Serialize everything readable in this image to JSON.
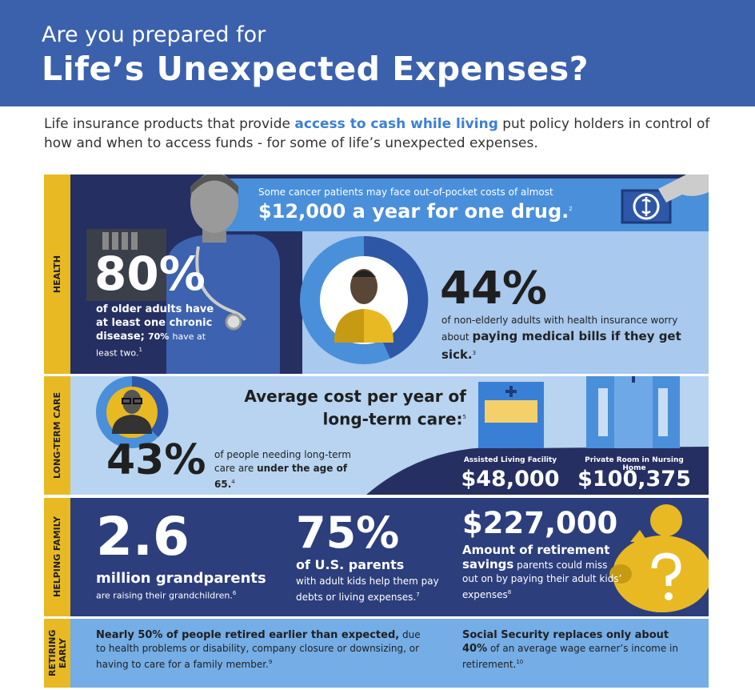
{
  "header": {
    "kicker": "Are you prepared for",
    "title": "Life’s Unexpected Expenses?"
  },
  "intro": {
    "before": "Life insurance products that provide",
    "highlight": "access to cash while living",
    "after": "put policy holders in control of how and when to access funds - for some of life’s unexpected expenses."
  },
  "health": {
    "label": "HEALTH",
    "drug_note": "Some cancer patients may face out-of-pocket costs of almost",
    "drug_stat": "$12,000 a year for one drug.",
    "drug_footnote": "2",
    "chronic": {
      "value": "80%",
      "text": "of older adults have at least one chronic disease;",
      "sub_bold": "70%",
      "sub": "have at least two.",
      "footnote": "1"
    },
    "worry": {
      "value": "44%",
      "text": "of non-elderly adults with health insurance worry about",
      "bold": "paying medical bills if they get sick.",
      "footnote": "3"
    }
  },
  "long_term_care": {
    "label": "LONG-TERM CARE",
    "heading": "Average cost per year of long-term care:",
    "heading_footnote": "5",
    "stat": {
      "value": "43%",
      "text": "of people needing long-term care are",
      "bold": "under the age of 65.",
      "footnote": "4"
    },
    "facilities": [
      {
        "name": "Assisted Living Facility",
        "cost": "$48,000"
      },
      {
        "name": "Private Room in Nursing Home",
        "cost": "$100,375"
      }
    ]
  },
  "helping_family": {
    "label": "HELPING FAMILY",
    "grandparents": {
      "value": "2.6",
      "heading": "million grandparents",
      "text": "are raising their grandchildren.",
      "footnote": "6"
    },
    "parents": {
      "value": "75%",
      "heading": "of U.S. parents",
      "text": "with adult kids help them pay debts or living expenses.",
      "footnote": "7"
    },
    "savings": {
      "value": "$227,000",
      "heading": "Amount of retirement savings",
      "text": "parents could miss out on by paying their adult kids’ expenses",
      "footnote": "8"
    }
  },
  "retiring_early": {
    "label": "RETIRING EARLY",
    "facts": [
      {
        "bold": "Nearly 50% of people retired earlier than expected,",
        "text": "due to health problems or disability, company closure or downsizing, or having to care for a family member.",
        "footnote": "9"
      },
      {
        "bold": "Social Security replaces only about",
        "bold2": "40%",
        "text": "of an average wage earner’s income in retirement.",
        "footnote": "10"
      }
    ]
  }
}
